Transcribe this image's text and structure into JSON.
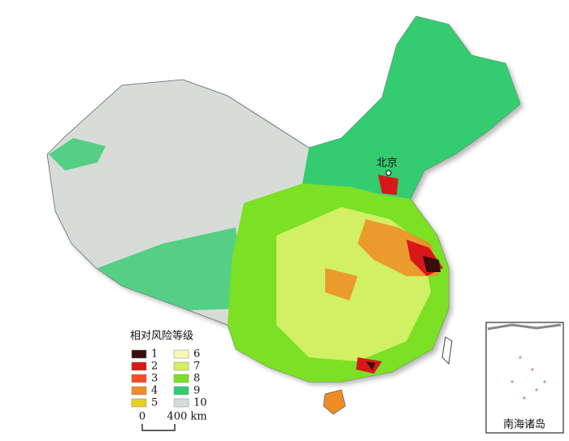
{
  "map": {
    "city_label": "北京",
    "legend": {
      "title": "相对风险等级",
      "items": [
        {
          "label": "1",
          "color": "#3a0c0c"
        },
        {
          "label": "2",
          "color": "#d81818"
        },
        {
          "label": "3",
          "color": "#ff4a22"
        },
        {
          "label": "4",
          "color": "#f08c24"
        },
        {
          "label": "5",
          "color": "#e6d024"
        },
        {
          "label": "6",
          "color": "#f6f8b4"
        },
        {
          "label": "7",
          "color": "#d2f064"
        },
        {
          "label": "8",
          "color": "#7ce024"
        },
        {
          "label": "9",
          "color": "#34cc70"
        },
        {
          "label": "10",
          "color": "#d8dcd8"
        }
      ]
    },
    "scale_bar": {
      "start": "0",
      "end": "400 km"
    },
    "inset_label": "南海诸岛"
  }
}
